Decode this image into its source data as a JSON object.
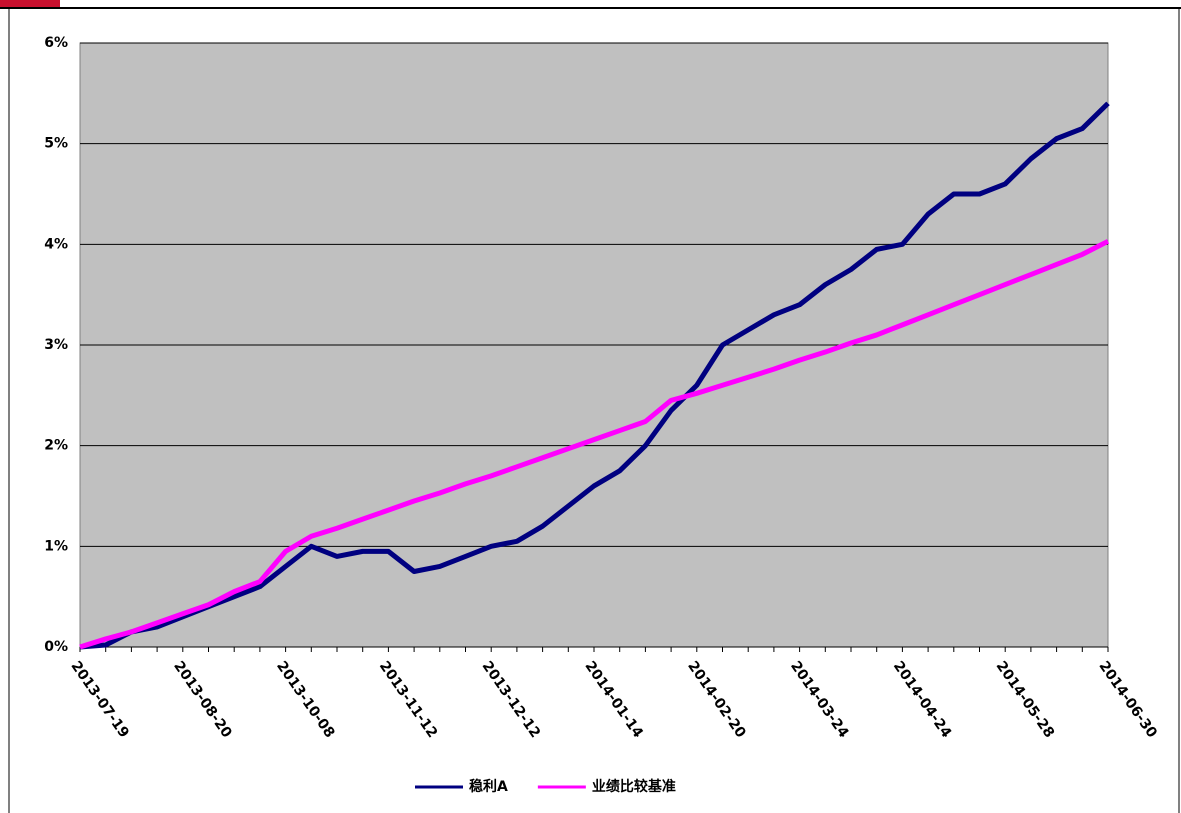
{
  "chart_data": {
    "type": "line",
    "categories": [
      "2013-07-19",
      null,
      null,
      null,
      "2013-08-20",
      null,
      null,
      null,
      "2013-10-08",
      null,
      null,
      null,
      "2013-11-12",
      null,
      null,
      null,
      "2013-12-12",
      null,
      null,
      null,
      "2014-01-14",
      null,
      null,
      null,
      "2014-02-20",
      null,
      null,
      null,
      "2014-03-24",
      null,
      null,
      null,
      "2014-04-24",
      null,
      null,
      null,
      "2014-05-28",
      null,
      null,
      null,
      "2014-06-30"
    ],
    "series": [
      {
        "name": "稳利A",
        "color": "#000080",
        "values": [
          0,
          0.02,
          0.15,
          0.2,
          0.3,
          0.4,
          0.5,
          0.6,
          0.8,
          1.0,
          0.9,
          0.95,
          0.95,
          0.75,
          0.8,
          0.9,
          1.0,
          1.05,
          1.2,
          1.4,
          1.6,
          1.75,
          2.0,
          2.35,
          2.6,
          3.0,
          3.15,
          3.3,
          3.4,
          3.6,
          3.75,
          3.95,
          4.0,
          4.3,
          4.5,
          4.5,
          4.6,
          4.85,
          5.05,
          5.15,
          5.4
        ]
      },
      {
        "name": "业绩比较基准",
        "color": "#ff00ff",
        "values": [
          0,
          0.08,
          0.15,
          0.24,
          0.33,
          0.42,
          0.55,
          0.65,
          0.95,
          1.1,
          1.18,
          1.27,
          1.36,
          1.45,
          1.53,
          1.62,
          1.7,
          1.79,
          1.88,
          1.97,
          2.06,
          2.15,
          2.24,
          2.45,
          2.52,
          2.6,
          2.68,
          2.76,
          2.85,
          2.93,
          3.02,
          3.1,
          3.2,
          3.3,
          3.4,
          3.5,
          3.6,
          3.7,
          3.8,
          3.9,
          4.03
        ]
      }
    ],
    "ylim": [
      0,
      6
    ],
    "yticks": [
      {
        "value": 0,
        "label": "0%"
      },
      {
        "value": 1,
        "label": "1%"
      },
      {
        "value": 2,
        "label": "2%"
      },
      {
        "value": 3,
        "label": "3%"
      },
      {
        "value": 4,
        "label": "4%"
      },
      {
        "value": 5,
        "label": "5%"
      },
      {
        "value": 6,
        "label": "6%"
      }
    ],
    "grid": true,
    "legend": "bottom"
  }
}
